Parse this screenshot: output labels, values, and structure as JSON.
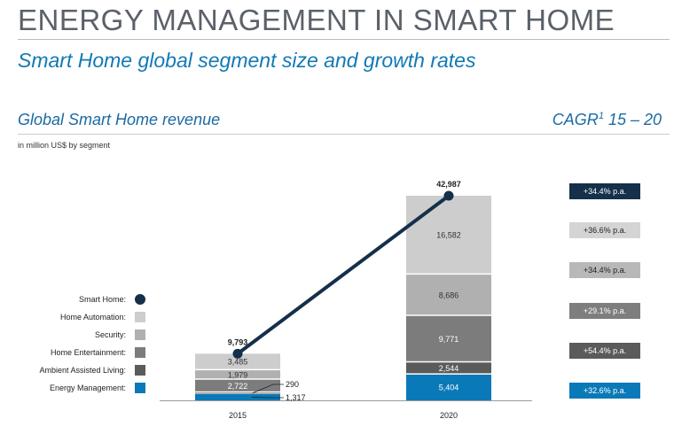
{
  "header": {
    "title": "ENERGY MANAGEMENT IN SMART HOME",
    "subtitle": "Smart Home global segment size and growth rates"
  },
  "chart_header": {
    "title": "Global Smart Home revenue",
    "cagr_prefix": "CAGR",
    "cagr_sup": "1",
    "cagr_range": " 15 – 20",
    "unit": "in million US$ by segment"
  },
  "legend": [
    {
      "label": "Smart Home:",
      "color": "#14304a",
      "shape": "circle"
    },
    {
      "label": "Home Automation:",
      "color": "#cdcdcd",
      "shape": "square"
    },
    {
      "label": "Security:",
      "color": "#b0b0b0",
      "shape": "square"
    },
    {
      "label": "Home Entertainment:",
      "color": "#7c7c7c",
      "shape": "square"
    },
    {
      "label": "Ambient Assisted Living:",
      "color": "#5b5b5b",
      "shape": "square"
    },
    {
      "label": "Energy Management:",
      "color": "#0a79b7",
      "shape": "square"
    }
  ],
  "cagr": [
    {
      "label": "+34.4% p.a.",
      "bg": "#14304a",
      "fg": "#ffffff"
    },
    {
      "label": "+36.6% p.a.",
      "bg": "#d4d4d4",
      "fg": "#222222"
    },
    {
      "label": "+34.4% p.a.",
      "bg": "#b8b8b8",
      "fg": "#222222"
    },
    {
      "label": "+29.1% p.a.",
      "bg": "#7e7e7e",
      "fg": "#ffffff"
    },
    {
      "label": "+54.4% p.a.",
      "bg": "#5b5b5b",
      "fg": "#ffffff"
    },
    {
      "label": "+32.6% p.a.",
      "bg": "#0a79b7",
      "fg": "#ffffff"
    }
  ],
  "chart_data": {
    "type": "stacked-bar+line",
    "categories": [
      "2015",
      "2020"
    ],
    "series": [
      {
        "name": "Energy Management",
        "color": "#0a79b7",
        "values": [
          1317,
          5404
        ],
        "labels": [
          "1,317",
          "5,404"
        ]
      },
      {
        "name": "Ambient Assisted Living",
        "color": "#5b5b5b",
        "values": [
          290,
          2544
        ],
        "labels": [
          "290",
          "2,544"
        ]
      },
      {
        "name": "Home Entertainment",
        "color": "#7c7c7c",
        "values": [
          2722,
          9771
        ],
        "labels": [
          "2,722",
          "9,771"
        ]
      },
      {
        "name": "Security",
        "color": "#b0b0b0",
        "values": [
          1979,
          8686
        ],
        "labels": [
          "1,979",
          "8,686"
        ]
      },
      {
        "name": "Home Automation",
        "color": "#cdcdcd",
        "values": [
          3485,
          16582
        ],
        "labels": [
          "3,485",
          "16,582"
        ]
      }
    ],
    "line": {
      "name": "Smart Home",
      "color": "#14304a",
      "values": [
        9793,
        42987
      ],
      "labels": [
        "9,793",
        "42,987"
      ]
    },
    "ylim": [
      0,
      45000
    ]
  }
}
